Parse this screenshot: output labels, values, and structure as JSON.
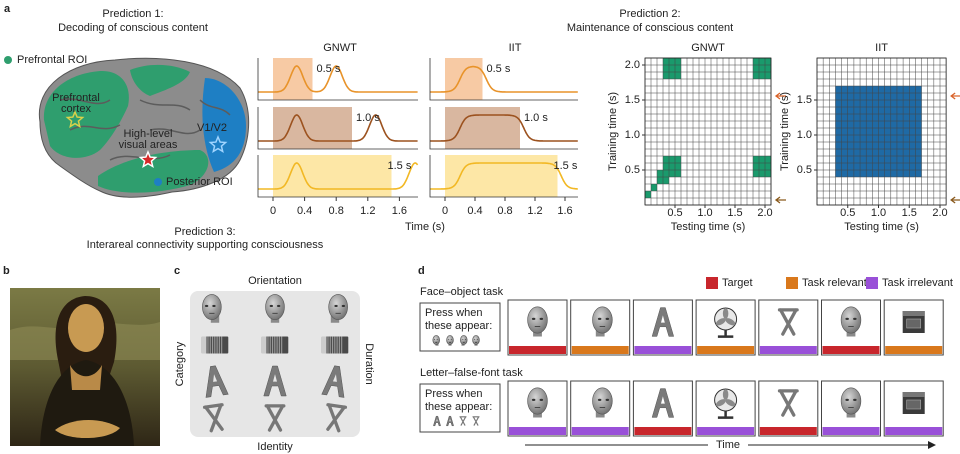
{
  "panel_a": {
    "label": "a",
    "prediction_1": {
      "title": "Prediction 1:",
      "text": "Decoding of conscious content"
    },
    "prediction_2": {
      "title": "Prediction 2:",
      "text": "Maintenance of conscious content"
    },
    "prediction_3": {
      "title": "Prediction 3:",
      "text": "Interareal connectivity supporting consciousness"
    },
    "brain": {
      "legend": [
        "Prefrontal ROI",
        "Posterior ROI"
      ],
      "areas": [
        [
          "Prefrontal",
          "cortex"
        ],
        [
          "High-level",
          "visual areas"
        ],
        [
          "V1/V2"
        ]
      ]
    },
    "time_courses": {
      "titles": [
        "GNWT",
        "IIT"
      ],
      "durations": [
        "0.5 s",
        "1.0 s",
        "1.5 s"
      ],
      "xticks": [
        "0",
        "0.4",
        "0.8",
        "1.2",
        "1.6"
      ],
      "xlabel": "Time (s)"
    },
    "matrices": {
      "titles": [
        "GNWT",
        "IIT"
      ],
      "ylabel": "Training time (s)",
      "xlabel": "Testing time (s)",
      "xticks": [
        "0.5",
        "1.0",
        "1.5",
        "2.0"
      ],
      "yticks": [
        [
          "0.5",
          "1.0",
          "1.5",
          "2.0"
        ],
        [
          "0.5",
          "1.0",
          "1.5"
        ]
      ]
    }
  },
  "panel_b": {
    "label": "b"
  },
  "panel_c": {
    "label": "c",
    "axes": {
      "top": "Orientation",
      "bottom": "Identity",
      "left": "Category",
      "right": "Duration"
    }
  },
  "panel_d": {
    "label": "d",
    "legend": [
      "Target",
      "Task relevant",
      "Task irrelevant"
    ],
    "tasks": [
      {
        "name": "Face–object task",
        "instruction": [
          "Press when",
          "these appear:"
        ]
      },
      {
        "name": "Letter–false-font task",
        "instruction": [
          "Press when",
          "these appear:"
        ]
      }
    ],
    "axis": "Time"
  }
}
